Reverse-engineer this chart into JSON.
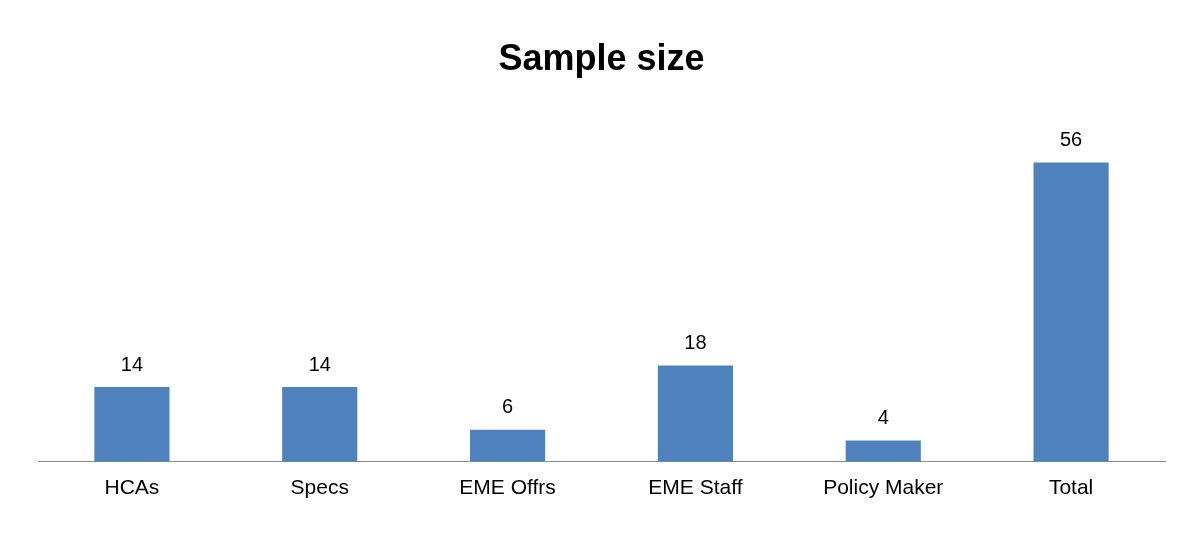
{
  "chart_data": {
    "type": "bar",
    "title": "Sample size",
    "categories": [
      "HCAs",
      "Specs",
      "EME Offrs",
      "EME Staff",
      "Policy Maker",
      "Total"
    ],
    "values": [
      14,
      14,
      6,
      18,
      4,
      56
    ],
    "color": "#4f81bd",
    "data_labels": true,
    "grid": false,
    "legend": false
  }
}
